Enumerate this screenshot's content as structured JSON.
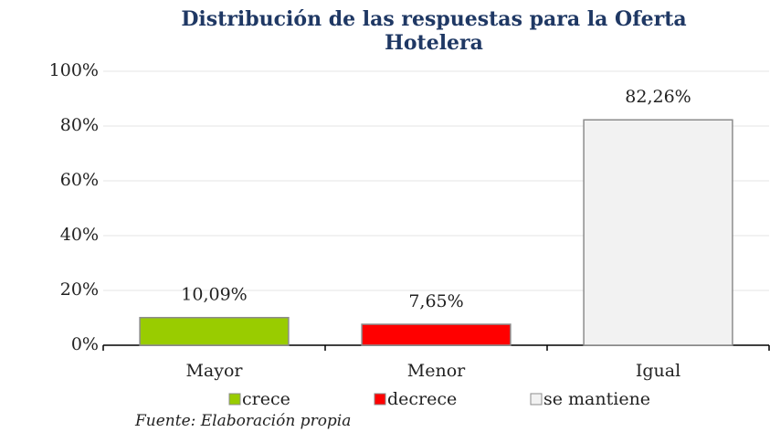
{
  "chart_data": {
    "type": "bar",
    "title": "Distribución de las respuestas para la Oferta Hotelera",
    "categories": [
      "Mayor",
      "Menor",
      "Igual"
    ],
    "values": [
      10.09,
      7.65,
      82.26
    ],
    "value_labels": [
      "10,09%",
      "7,65%",
      "82,26%"
    ],
    "colors": [
      "#99cc00",
      "#ff0000",
      "#f2f2f2"
    ],
    "legend": [
      "crece",
      "decrece",
      "se mantiene"
    ],
    "ylim": [
      0,
      100
    ],
    "yticks": [
      {
        "value": 0,
        "label": "0%"
      },
      {
        "value": 20,
        "label": "20%"
      },
      {
        "value": 40,
        "label": "40%"
      },
      {
        "value": 60,
        "label": "60%"
      },
      {
        "value": 80,
        "label": "80%"
      },
      {
        "value": 100,
        "label": "100%"
      }
    ],
    "grid": true,
    "source": "Fuente: Elaboración propia"
  }
}
